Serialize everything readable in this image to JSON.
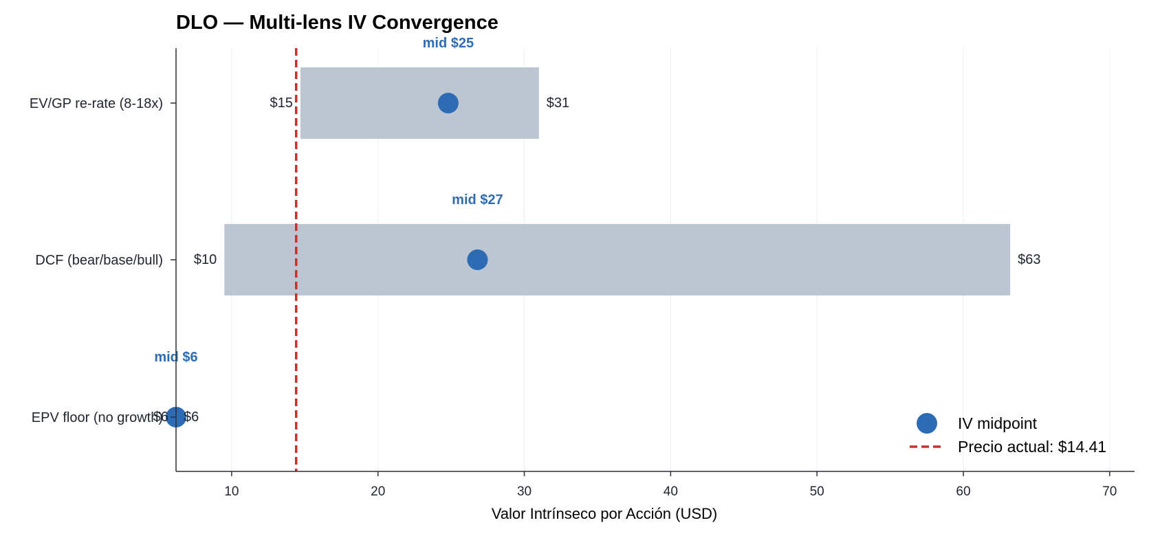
{
  "chart_data": {
    "type": "range-bar",
    "title": "DLO — Multi-lens IV Convergence",
    "xlabel": "Valor Intrínseco por Acción (USD)",
    "ylabel": "",
    "xlim": [
      6.2,
      71.7
    ],
    "xticks": [
      10,
      20,
      30,
      40,
      50,
      60,
      70
    ],
    "grid_x": true,
    "categories": [
      "EV/GP re-rate (8-18x)",
      "DCF (bear/base/bull)",
      "EPV floor (no growth)"
    ],
    "series": [
      {
        "name": "IV range",
        "low": [
          14.7,
          9.5,
          6.2
        ],
        "high": [
          31.0,
          63.2,
          6.2
        ],
        "low_labels": [
          "$15",
          "$10",
          "$6"
        ],
        "high_labels": [
          "$31",
          "$63",
          "$6"
        ]
      },
      {
        "name": "IV midpoint",
        "values": [
          24.8,
          26.8,
          6.2
        ],
        "labels": [
          "mid $25",
          "mid $27",
          "mid $6"
        ]
      }
    ],
    "reference_line": {
      "label": "Precio actual: $14.41",
      "value": 14.41
    },
    "legend": {
      "placement": "bottom-right",
      "entries": [
        "IV midpoint",
        "Precio actual: $14.41"
      ]
    },
    "colors": {
      "bar": "#bcc6d3",
      "midpoint": "#2d6cb5",
      "mid_label": "#2d6cb5",
      "price_line": "#c73030",
      "axis": "#2b2f3a",
      "grid": "#eeeeee"
    }
  }
}
